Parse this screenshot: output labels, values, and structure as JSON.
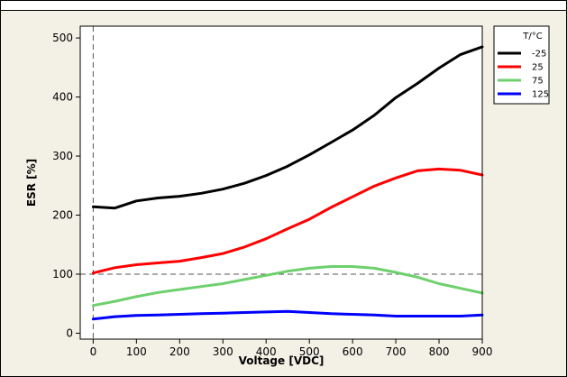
{
  "colors": {
    "panel_background": "#f3f1e6",
    "plot_background": "#ffffff"
  },
  "chart_data": {
    "type": "line",
    "title": "",
    "xlabel": "Voltage [VDC]",
    "ylabel": "ESR [%]",
    "xlim": [
      -30,
      900
    ],
    "ylim": [
      -10,
      520
    ],
    "x_ticks": [
      0,
      100,
      200,
      300,
      400,
      500,
      600,
      700,
      800,
      900
    ],
    "y_ticks": [
      0,
      100,
      200,
      300,
      400,
      500
    ],
    "reference_lines": {
      "vertical_x": 0,
      "horizontal_y": 100,
      "style": "dashed"
    },
    "legend": {
      "title": "T/°C",
      "placement": "right"
    },
    "series": [
      {
        "name": "-25",
        "color": "#000000",
        "x": [
          0,
          50,
          100,
          150,
          200,
          250,
          300,
          350,
          400,
          450,
          500,
          550,
          600,
          650,
          700,
          750,
          800,
          850,
          900
        ],
        "y": [
          214,
          212,
          224,
          229,
          232,
          237,
          244,
          254,
          267,
          283,
          302,
          323,
          344,
          369,
          399,
          423,
          449,
          472,
          485
        ]
      },
      {
        "name": "25",
        "color": "#ff0000",
        "x": [
          0,
          50,
          100,
          150,
          200,
          250,
          300,
          350,
          400,
          450,
          500,
          550,
          600,
          650,
          700,
          750,
          800,
          850,
          900
        ],
        "y": [
          102,
          111,
          116,
          119,
          122,
          128,
          135,
          146,
          160,
          177,
          193,
          213,
          231,
          249,
          263,
          275,
          278,
          276,
          268
        ]
      },
      {
        "name": "75",
        "color": "#6dd06d",
        "x": [
          0,
          50,
          100,
          150,
          200,
          250,
          300,
          350,
          400,
          450,
          500,
          550,
          600,
          650,
          700,
          750,
          800,
          850,
          900
        ],
        "y": [
          47,
          54,
          62,
          69,
          74,
          79,
          84,
          91,
          98,
          105,
          110,
          113,
          113,
          110,
          103,
          95,
          84,
          76,
          68
        ]
      },
      {
        "name": "125",
        "color": "#0000ff",
        "x": [
          0,
          50,
          100,
          150,
          200,
          250,
          300,
          350,
          400,
          450,
          500,
          550,
          600,
          650,
          700,
          750,
          800,
          850,
          900
        ],
        "y": [
          24,
          28,
          30,
          31,
          32,
          33,
          34,
          35,
          36,
          37,
          35,
          33,
          32,
          31,
          29,
          29,
          29,
          29,
          31
        ]
      }
    ]
  }
}
